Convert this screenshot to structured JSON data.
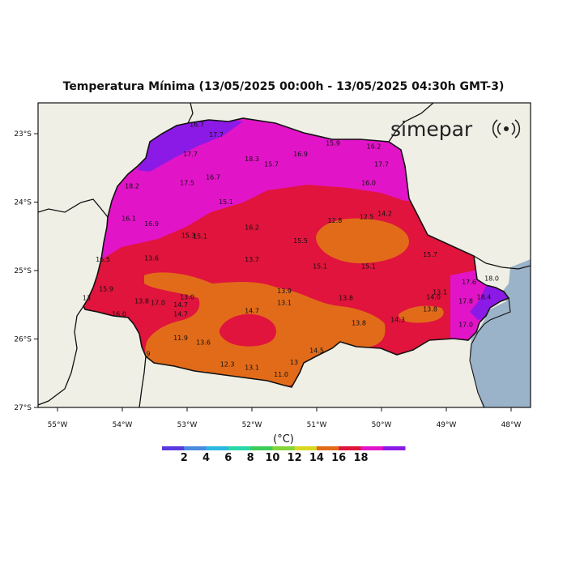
{
  "title": "Temperatura Mínima (13/05/2025 00:00h - 13/05/2025 04:30h GMT-3)",
  "logo": {
    "text": "simepar",
    "icon": "signal-rings-icon"
  },
  "colors": {
    "background": "#f0efe6",
    "ocean": "#9bb3c8",
    "class_12_14": "#e26b1a",
    "class_14_16": "#e0143c",
    "class_16_18": "#e214c8",
    "class_18_plus": "#8c1ae6"
  },
  "map": {
    "lon_range": [
      -55.3,
      -47.7
    ],
    "lat_range": [
      -27.0,
      -22.55
    ],
    "lon_ticks": [
      {
        "value": -55,
        "label": "55°W"
      },
      {
        "value": -54,
        "label": "54°W"
      },
      {
        "value": -53,
        "label": "53°W"
      },
      {
        "value": -52,
        "label": "52°W"
      },
      {
        "value": -51,
        "label": "51°W"
      },
      {
        "value": -50,
        "label": "50°W"
      },
      {
        "value": -49,
        "label": "49°W"
      },
      {
        "value": -48,
        "label": "48°W"
      }
    ],
    "lat_ticks": [
      {
        "value": -23,
        "label": "23°S"
      },
      {
        "value": -24,
        "label": "24°S"
      },
      {
        "value": -25,
        "label": "25°S"
      },
      {
        "value": -26,
        "label": "26°S"
      },
      {
        "value": -27,
        "label": "27°S"
      }
    ],
    "stations": [
      {
        "lon": -53.55,
        "lat": -22.5,
        "value": "19.2"
      },
      {
        "lon": -52.85,
        "lat": -22.9,
        "value": "16.7"
      },
      {
        "lon": -52.55,
        "lat": -23.05,
        "value": "17.7"
      },
      {
        "lon": -50.75,
        "lat": -23.17,
        "value": "15.9"
      },
      {
        "lon": -50.12,
        "lat": -23.22,
        "value": "16.2"
      },
      {
        "lon": -52.95,
        "lat": -23.33,
        "value": "17.7"
      },
      {
        "lon": -52.0,
        "lat": -23.4,
        "value": "18.3"
      },
      {
        "lon": -51.25,
        "lat": -23.33,
        "value": "16.9"
      },
      {
        "lon": -51.7,
        "lat": -23.48,
        "value": "15.7"
      },
      {
        "lon": -50.0,
        "lat": -23.48,
        "value": "17.7"
      },
      {
        "lon": -52.6,
        "lat": -23.67,
        "value": "16.7"
      },
      {
        "lon": -53.0,
        "lat": -23.75,
        "value": "17.5"
      },
      {
        "lon": -53.85,
        "lat": -23.8,
        "value": "18.2"
      },
      {
        "lon": -50.2,
        "lat": -23.75,
        "value": "16.0"
      },
      {
        "lon": -52.4,
        "lat": -24.03,
        "value": "15.1"
      },
      {
        "lon": -49.95,
        "lat": -24.2,
        "value": "14.2"
      },
      {
        "lon": -53.9,
        "lat": -24.27,
        "value": "16.1"
      },
      {
        "lon": -50.23,
        "lat": -24.25,
        "value": "12.5"
      },
      {
        "lon": -50.72,
        "lat": -24.3,
        "value": "12.8"
      },
      {
        "lon": -53.55,
        "lat": -24.35,
        "value": "16.9"
      },
      {
        "lon": -52.0,
        "lat": -24.4,
        "value": "16.2"
      },
      {
        "lon": -52.98,
        "lat": -24.52,
        "value": "15.3"
      },
      {
        "lon": -52.8,
        "lat": -24.53,
        "value": "15.1"
      },
      {
        "lon": -51.25,
        "lat": -24.6,
        "value": "15.5"
      },
      {
        "lon": -49.25,
        "lat": -24.8,
        "value": "15.7"
      },
      {
        "lon": -54.3,
        "lat": -24.87,
        "value": "16.5"
      },
      {
        "lon": -53.55,
        "lat": -24.85,
        "value": "13.6"
      },
      {
        "lon": -52.0,
        "lat": -24.87,
        "value": "13.7"
      },
      {
        "lon": -50.95,
        "lat": -24.97,
        "value": "15.1"
      },
      {
        "lon": -50.2,
        "lat": -24.97,
        "value": "15.1"
      },
      {
        "lon": -48.65,
        "lat": -25.2,
        "value": "17.6"
      },
      {
        "lon": -48.3,
        "lat": -25.15,
        "value": "18.0"
      },
      {
        "lon": -54.25,
        "lat": -25.3,
        "value": "15.9"
      },
      {
        "lon": -51.5,
        "lat": -25.33,
        "value": "13.9"
      },
      {
        "lon": -49.1,
        "lat": -25.35,
        "value": "13.1"
      },
      {
        "lon": -53.0,
        "lat": -25.42,
        "value": "13.0"
      },
      {
        "lon": -50.55,
        "lat": -25.43,
        "value": "13.8"
      },
      {
        "lon": -49.2,
        "lat": -25.42,
        "value": "14.0"
      },
      {
        "lon": -48.42,
        "lat": -25.42,
        "value": "18.4"
      },
      {
        "lon": -54.55,
        "lat": -25.43,
        "value": "13"
      },
      {
        "lon": -53.7,
        "lat": -25.48,
        "value": "13.8"
      },
      {
        "lon": -53.45,
        "lat": -25.5,
        "value": "17.0"
      },
      {
        "lon": -53.1,
        "lat": -25.53,
        "value": "14.7"
      },
      {
        "lon": -48.7,
        "lat": -25.48,
        "value": "17.8"
      },
      {
        "lon": -51.5,
        "lat": -25.5,
        "value": "13.1"
      },
      {
        "lon": -52.0,
        "lat": -25.62,
        "value": "14.7"
      },
      {
        "lon": -49.25,
        "lat": -25.6,
        "value": "13.8"
      },
      {
        "lon": -54.05,
        "lat": -25.67,
        "value": "16.0"
      },
      {
        "lon": -53.1,
        "lat": -25.67,
        "value": "14.7"
      },
      {
        "lon": -49.75,
        "lat": -25.75,
        "value": "14.3"
      },
      {
        "lon": -50.35,
        "lat": -25.8,
        "value": "13.8"
      },
      {
        "lon": -48.7,
        "lat": -25.82,
        "value": "17.0"
      },
      {
        "lon": -53.1,
        "lat": -26.02,
        "value": "11.9"
      },
      {
        "lon": -52.75,
        "lat": -26.08,
        "value": "13.6"
      },
      {
        "lon": -51.0,
        "lat": -26.2,
        "value": "14.5"
      },
      {
        "lon": -53.6,
        "lat": -26.25,
        "value": "9"
      },
      {
        "lon": -51.35,
        "lat": -26.37,
        "value": "13"
      },
      {
        "lon": -52.38,
        "lat": -26.4,
        "value": "12.3"
      },
      {
        "lon": -52.0,
        "lat": -26.45,
        "value": "13.1"
      },
      {
        "lon": -51.55,
        "lat": -26.55,
        "value": "11.0"
      }
    ]
  },
  "legend": {
    "title": "(°C)",
    "colors": [
      "#5a3ae0",
      "#4a8ae0",
      "#2ab8e0",
      "#28d8a8",
      "#3ccc5a",
      "#84d43c",
      "#d8d81e",
      "#e26b1a",
      "#e0143c",
      "#e214c8",
      "#8c1ae6"
    ],
    "labels": [
      "2",
      "4",
      "6",
      "8",
      "10",
      "12",
      "14",
      "16",
      "18"
    ]
  }
}
